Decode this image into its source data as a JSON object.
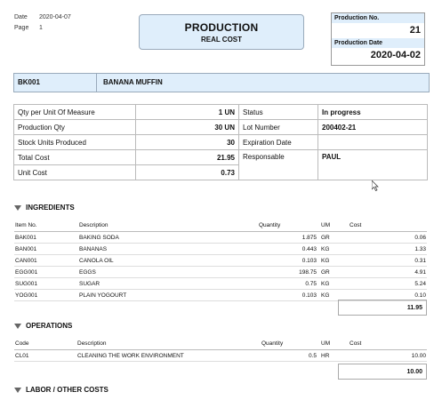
{
  "header": {
    "date_label": "Date",
    "date_value": "2020-04-07",
    "page_label": "Page",
    "page_value": "1",
    "title": "PRODUCTION",
    "subtitle": "REAL COST",
    "production_no_label": "Production No.",
    "production_no": "21",
    "production_date_label": "Production Date",
    "production_date": "2020-04-02"
  },
  "product": {
    "code": "BK001",
    "description": "BANANA MUFFIN"
  },
  "info": {
    "qty_uom_label": "Qty per Unit Of Measure",
    "qty_uom_value": "1 UN",
    "prod_qty_label": "Production Qty",
    "prod_qty_value": "30 UN",
    "stock_label": "Stock Units Produced",
    "stock_value": "30",
    "total_cost_label": "Total Cost",
    "total_cost_value": "21.95",
    "unit_cost_label": "Unit Cost",
    "unit_cost_value": "0.73",
    "status_label": "Status",
    "status_value": "In progress",
    "lot_label": "Lot Number",
    "lot_value": "200402-21",
    "exp_label": "Expiration Date",
    "exp_value": "",
    "resp_label": "Responsable",
    "resp_value": "PAUL"
  },
  "ingredients": {
    "title": "INGREDIENTS",
    "columns": {
      "item": "Item No.",
      "desc": "Description",
      "qty": "Quantity",
      "um": "UM",
      "cost": "Cost"
    },
    "rows": [
      {
        "item": "BAK001",
        "desc": "BAKING SODA",
        "qty": "1.875",
        "um": "GR",
        "cost": "0.06"
      },
      {
        "item": "BAN001",
        "desc": "BANANAS",
        "qty": "0.443",
        "um": "KG",
        "cost": "1.33"
      },
      {
        "item": "CAN001",
        "desc": "CANOLA OIL",
        "qty": "0.103",
        "um": "KG",
        "cost": "0.31"
      },
      {
        "item": "EGG001",
        "desc": "EGGS",
        "qty": "198.75",
        "um": "GR",
        "cost": "4.91"
      },
      {
        "item": "SUG001",
        "desc": "SUGAR",
        "qty": "0.75",
        "um": "KG",
        "cost": "5.24"
      },
      {
        "item": "YOG001",
        "desc": "PLAIN YOGOURT",
        "qty": "0.103",
        "um": "KG",
        "cost": "0.10"
      }
    ],
    "total": "11.95"
  },
  "operations": {
    "title": "OPERATIONS",
    "columns": {
      "code": "Code",
      "desc": "Description",
      "qty": "Quantity",
      "um": "UM",
      "cost": "Cost"
    },
    "rows": [
      {
        "code": "CL01",
        "desc": "CLEANING THE WORK ENVIRONMENT",
        "qty": "0.5",
        "um": "HR",
        "cost": "10.00"
      }
    ],
    "total": "10.00"
  },
  "labor": {
    "title": "LABOR  / OTHER COSTS"
  },
  "colors": {
    "header_fill": "#dfeefb",
    "border": "#bbbbbb"
  }
}
